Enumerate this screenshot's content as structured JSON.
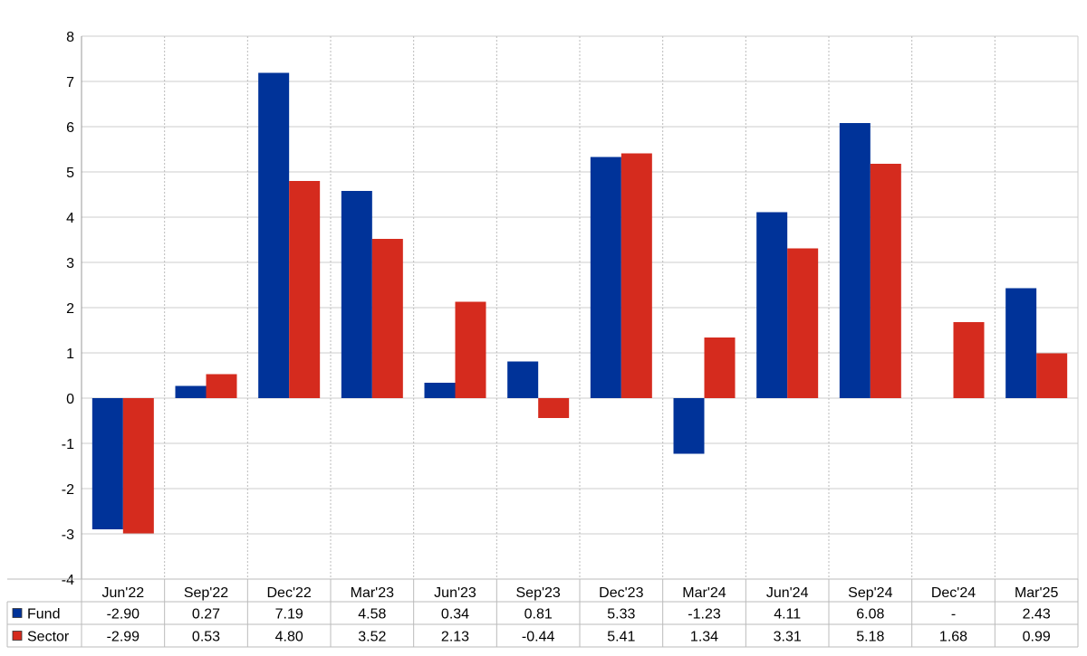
{
  "chart_data": {
    "type": "bar",
    "title": "",
    "xlabel": "",
    "ylabel": "",
    "ylim": [
      -4,
      8
    ],
    "yticks": [
      -4,
      -3,
      -2,
      -1,
      0,
      1,
      2,
      3,
      4,
      5,
      6,
      7,
      8
    ],
    "ytick_labels": [
      "-4",
      "-3",
      "-2",
      "-1",
      "0",
      "1",
      "2",
      "3",
      "4",
      "5",
      "6",
      "7",
      "8"
    ],
    "grid": true,
    "legend": "table-bottom",
    "categories": [
      "Jun'22",
      "Sep'22",
      "Dec'22",
      "Mar'23",
      "Jun'23",
      "Sep'23",
      "Dec'23",
      "Mar'24",
      "Jun'24",
      "Sep'24",
      "Dec'24",
      "Mar'25"
    ],
    "series": [
      {
        "name": "Fund",
        "color": "#003399",
        "values": [
          -2.9,
          0.27,
          7.19,
          4.58,
          0.34,
          0.81,
          5.33,
          -1.23,
          4.11,
          6.08,
          null,
          2.43
        ],
        "labels": [
          "-2.90",
          "0.27",
          "7.19",
          "4.58",
          "0.34",
          "0.81",
          "5.33",
          "-1.23",
          "4.11",
          "6.08",
          "-",
          "2.43"
        ]
      },
      {
        "name": "Sector",
        "color": "#d52b1e",
        "values": [
          -2.99,
          0.53,
          4.8,
          3.52,
          2.13,
          -0.44,
          5.41,
          1.34,
          3.31,
          5.18,
          1.68,
          0.99
        ],
        "labels": [
          "-2.99",
          "0.53",
          "4.80",
          "3.52",
          "2.13",
          "-0.44",
          "5.41",
          "1.34",
          "3.31",
          "5.18",
          "1.68",
          "0.99"
        ]
      }
    ],
    "negative_label_color": "#ff0000"
  }
}
